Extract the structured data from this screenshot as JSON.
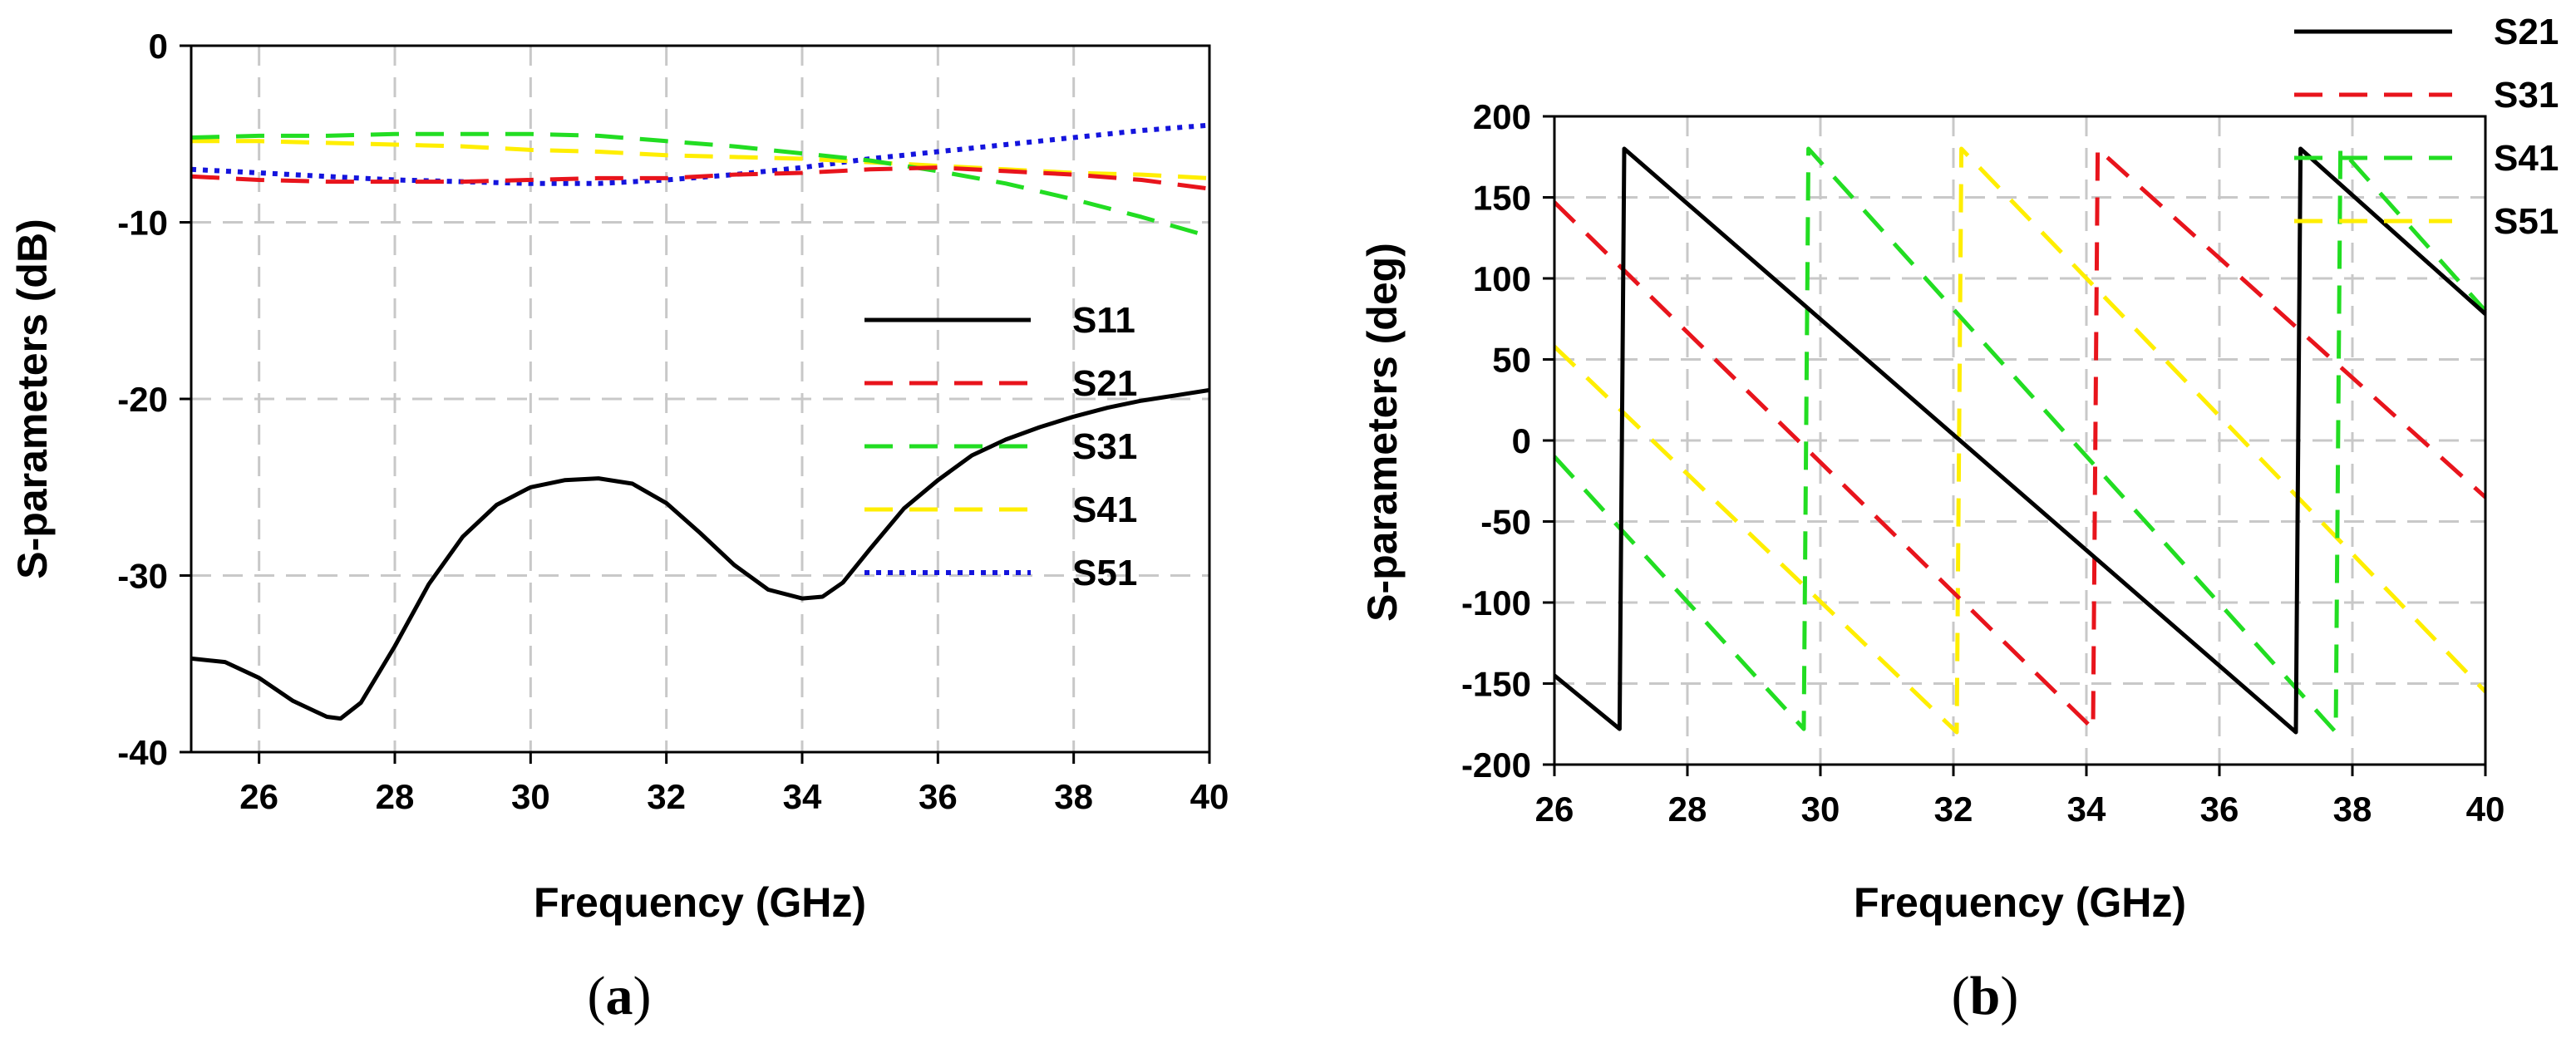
{
  "figure": {
    "panels": [
      "a",
      "b"
    ]
  },
  "chart_data": [
    {
      "id": "a",
      "type": "line",
      "caption": "a",
      "xlabel": "Frequency (GHz)",
      "ylabel": "S-parameters (dB)",
      "xlim": [
        25,
        40
      ],
      "ylim": [
        -40,
        0
      ],
      "xticks": [
        26,
        28,
        30,
        32,
        34,
        36,
        38,
        40
      ],
      "yticks": [
        0,
        -10,
        -20,
        -30,
        -40
      ],
      "grid": true,
      "legend_position": "center-right",
      "series": [
        {
          "name": "S11",
          "color": "#000000",
          "style": "solid",
          "x": [
            25,
            25.5,
            26,
            26.5,
            27,
            27.2,
            27.5,
            28,
            28.5,
            29,
            29.5,
            30,
            30.5,
            31,
            31.5,
            32,
            32.5,
            33,
            33.5,
            34,
            34.3,
            34.6,
            35,
            35.5,
            36,
            36.5,
            37,
            37.5,
            38,
            38.5,
            39,
            39.5,
            40
          ],
          "y": [
            -34.7,
            -34.9,
            -35.8,
            -37.1,
            -38.0,
            -38.1,
            -37.2,
            -34.0,
            -30.5,
            -27.8,
            -26.0,
            -25.0,
            -24.6,
            -24.5,
            -24.8,
            -25.9,
            -27.6,
            -29.4,
            -30.8,
            -31.3,
            -31.2,
            -30.4,
            -28.5,
            -26.2,
            -24.6,
            -23.2,
            -22.3,
            -21.6,
            -21.0,
            -20.5,
            -20.1,
            -19.8,
            -19.5
          ]
        },
        {
          "name": "S21",
          "color": "#e8141c",
          "style": "dashed",
          "x": [
            25,
            26,
            27,
            28,
            29,
            30,
            31,
            32,
            33,
            34,
            35,
            36,
            37,
            38,
            39,
            40
          ],
          "y": [
            -7.4,
            -7.6,
            -7.7,
            -7.7,
            -7.7,
            -7.6,
            -7.5,
            -7.5,
            -7.3,
            -7.2,
            -7.0,
            -6.9,
            -7.1,
            -7.3,
            -7.6,
            -8.1
          ]
        },
        {
          "name": "S31",
          "color": "#22dd22",
          "style": "dashed",
          "x": [
            25,
            26,
            27,
            28,
            29,
            30,
            31,
            32,
            33,
            34,
            35,
            36,
            37,
            38,
            39,
            40
          ],
          "y": [
            -5.2,
            -5.1,
            -5.1,
            -5.0,
            -5.0,
            -5.0,
            -5.1,
            -5.4,
            -5.7,
            -6.1,
            -6.5,
            -7.1,
            -7.8,
            -8.7,
            -9.7,
            -10.8
          ]
        },
        {
          "name": "S41",
          "color": "#ffee00",
          "style": "dashed",
          "x": [
            25,
            26,
            27,
            28,
            29,
            30,
            31,
            32,
            33,
            34,
            35,
            36,
            37,
            38,
            39,
            40
          ],
          "y": [
            -5.4,
            -5.4,
            -5.5,
            -5.6,
            -5.7,
            -5.9,
            -6.0,
            -6.2,
            -6.3,
            -6.4,
            -6.6,
            -6.8,
            -7.0,
            -7.2,
            -7.3,
            -7.5
          ]
        },
        {
          "name": "S51",
          "color": "#1414dd",
          "style": "dotted",
          "x": [
            25,
            26,
            27,
            28,
            29,
            30,
            31,
            32,
            33,
            34,
            35,
            36,
            37,
            38,
            39,
            40
          ],
          "y": [
            -7.0,
            -7.2,
            -7.4,
            -7.6,
            -7.7,
            -7.8,
            -7.8,
            -7.6,
            -7.3,
            -6.9,
            -6.4,
            -6.0,
            -5.6,
            -5.2,
            -4.8,
            -4.5
          ]
        }
      ]
    },
    {
      "id": "b",
      "type": "line",
      "caption": "b",
      "xlabel": "Frequency (GHz)",
      "ylabel": "S-parameters (deg)",
      "xlim": [
        26,
        40
      ],
      "ylim": [
        -200,
        200
      ],
      "xticks": [
        26,
        28,
        30,
        32,
        34,
        36,
        38,
        40
      ],
      "yticks": [
        200,
        150,
        100,
        50,
        0,
        -50,
        -100,
        -150,
        -200
      ],
      "grid": true,
      "legend_position": "top-right",
      "series": [
        {
          "name": "S21",
          "color": "#000000",
          "style": "solid",
          "x": [
            26,
            26.98,
            27.05,
            37.15,
            37.22,
            40
          ],
          "y": [
            -145,
            -178,
            180,
            -180,
            180,
            78
          ]
        },
        {
          "name": "S31",
          "color": "#e8141c",
          "style": "dashed",
          "x": [
            26,
            34.1,
            34.17,
            40
          ],
          "y": [
            147,
            -178,
            180,
            -35
          ]
        },
        {
          "name": "S41",
          "color": "#22dd22",
          "style": "dashed",
          "x": [
            26,
            29.75,
            29.82,
            37.75,
            37.82,
            40
          ],
          "y": [
            -10,
            -178,
            180,
            -180,
            180,
            80
          ]
        },
        {
          "name": "S51",
          "color": "#ffee00",
          "style": "dashed",
          "x": [
            26,
            32.05,
            32.12,
            40
          ],
          "y": [
            58,
            -180,
            180,
            -155
          ]
        }
      ]
    }
  ]
}
